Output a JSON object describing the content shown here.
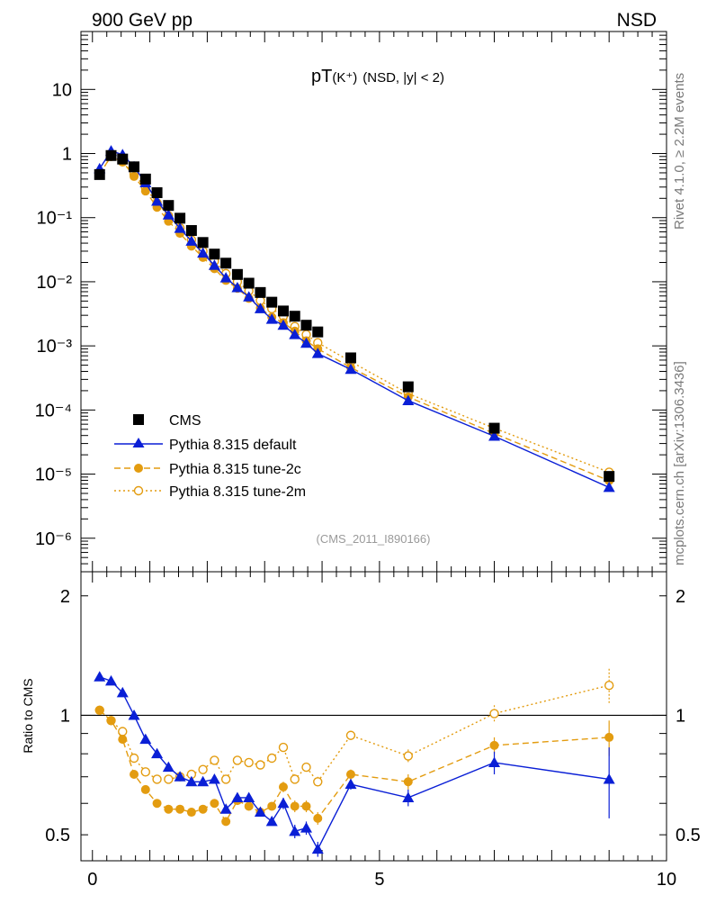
{
  "header": {
    "left": "900 GeV pp",
    "right": "NSD"
  },
  "side_labels": {
    "rivet": "Rivet 4.1.0, ≥ 2.2M events",
    "mcplots": "mcplots.cern.ch [arXiv:1306.3436]"
  },
  "chart_data": [
    {
      "type": "scatter",
      "panel": "main",
      "title_main": "pT",
      "title_particle": "(K⁺)",
      "title_cuts": "(NSD, |y| < 2)",
      "watermark": "(CMS_2011_I890166)",
      "yscale": "log",
      "ylim": [
        3e-07,
        80
      ],
      "xlim": [
        -0.2,
        10
      ],
      "ytick_labels": [
        "10",
        "1",
        "10⁻¹",
        "10⁻²",
        "10⁻³",
        "10⁻⁴",
        "10⁻⁵",
        "10⁻⁶"
      ],
      "ytick_values": [
        10,
        1,
        0.1,
        0.01,
        0.001,
        0.0001,
        1e-05,
        1e-06
      ],
      "legend": [
        "CMS",
        "Pythia 8.315 default",
        "Pythia 8.315 tune-2c",
        "Pythia 8.315 tune-2m"
      ],
      "x": [
        0.125,
        0.325,
        0.525,
        0.725,
        0.925,
        1.125,
        1.325,
        1.525,
        1.725,
        1.925,
        2.125,
        2.325,
        2.525,
        2.725,
        2.925,
        3.125,
        3.325,
        3.525,
        3.725,
        3.925,
        4.5,
        5.5,
        7.0,
        9.0
      ],
      "series": [
        {
          "name": "CMS",
          "marker": "square",
          "color": "#000000",
          "values": [
            0.47,
            0.93,
            0.82,
            0.62,
            0.4,
            0.245,
            0.155,
            0.098,
            0.063,
            0.041,
            0.027,
            0.0195,
            0.013,
            0.0095,
            0.0068,
            0.0048,
            0.0035,
            0.0029,
            0.0021,
            0.00165,
            0.00065,
            0.00023,
            5.2e-05,
            9.2e-06
          ]
        },
        {
          "name": "Pythia 8.315 default",
          "marker": "triangle",
          "color": "#0a1fd6",
          "values": [
            0.58,
            1.1,
            0.96,
            0.62,
            0.35,
            0.18,
            0.11,
            0.068,
            0.043,
            0.028,
            0.018,
            0.0115,
            0.0081,
            0.0058,
            0.0038,
            0.0026,
            0.0021,
            0.0015,
            0.0011,
            0.00076,
            0.00043,
            0.00014,
            3.9e-05,
            6.2e-06
          ]
        },
        {
          "name": "Pythia 8.315 tune-2c",
          "marker": "circle",
          "color": "#e39c10",
          "values": [
            0.48,
            0.91,
            0.75,
            0.44,
            0.26,
            0.145,
            0.088,
            0.057,
            0.036,
            0.024,
            0.016,
            0.0105,
            0.0079,
            0.0055,
            0.0039,
            0.0028,
            0.0023,
            0.0017,
            0.0012,
            0.0009,
            0.00046,
            0.00016,
            4.3e-05,
            7.9e-06
          ]
        },
        {
          "name": "Pythia 8.315 tune-2m",
          "marker": "open-circle",
          "color": "#e39c10",
          "values": [
            0.48,
            0.9,
            0.74,
            0.48,
            0.29,
            0.17,
            0.107,
            0.069,
            0.045,
            0.03,
            0.021,
            0.0134,
            0.01,
            0.0072,
            0.0051,
            0.0038,
            0.0029,
            0.002,
            0.0015,
            0.00112,
            0.00057,
            0.00018,
            5.2e-05,
            1.07e-05
          ]
        }
      ]
    },
    {
      "type": "scatter",
      "panel": "ratio",
      "ylabel": "Ratio to CMS",
      "yscale": "log",
      "ylim": [
        0.43,
        2.3
      ],
      "xlim": [
        -0.2,
        10
      ],
      "ytick_labels": [
        "2",
        "1",
        "0.5"
      ],
      "ytick_values": [
        2,
        1,
        0.5
      ],
      "xtick_labels": [
        "0",
        "5",
        "10"
      ],
      "xtick_values": [
        0,
        5,
        10
      ],
      "reference_line": 1,
      "x": [
        0.125,
        0.325,
        0.525,
        0.725,
        0.925,
        1.125,
        1.325,
        1.525,
        1.725,
        1.925,
        2.125,
        2.325,
        2.525,
        2.725,
        2.925,
        3.125,
        3.325,
        3.525,
        3.725,
        3.925,
        4.5,
        5.5,
        7.0,
        9.0
      ],
      "series": [
        {
          "name": "Pythia 8.315 default",
          "marker": "triangle",
          "color": "#0a1fd6",
          "values": [
            1.25,
            1.22,
            1.14,
            1.0,
            0.87,
            0.8,
            0.74,
            0.7,
            0.68,
            0.68,
            0.69,
            0.58,
            0.62,
            0.62,
            0.57,
            0.54,
            0.6,
            0.51,
            0.52,
            0.46,
            0.67,
            0.62,
            0.76,
            0.69
          ],
          "errors": [
            0,
            0,
            0,
            0,
            0,
            0,
            0,
            0,
            0,
            0,
            0,
            0,
            0,
            0,
            0,
            0,
            0.02,
            0.02,
            0.02,
            0.02,
            0.02,
            0.03,
            0.05,
            0.14
          ]
        },
        {
          "name": "Pythia 8.315 tune-2c",
          "marker": "circle",
          "color": "#e39c10",
          "values": [
            1.03,
            0.97,
            0.87,
            0.71,
            0.65,
            0.6,
            0.58,
            0.58,
            0.57,
            0.58,
            0.6,
            0.54,
            0.61,
            0.59,
            0.57,
            0.59,
            0.66,
            0.59,
            0.59,
            0.55,
            0.71,
            0.68,
            0.84,
            0.88
          ],
          "errors": [
            0,
            0,
            0,
            0,
            0,
            0,
            0,
            0,
            0,
            0,
            0,
            0,
            0,
            0,
            0,
            0,
            0.02,
            0.02,
            0.02,
            0.02,
            0.02,
            0.03,
            0.04,
            0.09
          ]
        },
        {
          "name": "Pythia 8.315 tune-2m",
          "marker": "open-circle",
          "color": "#e39c10",
          "values": [
            1.03,
            0.97,
            0.91,
            0.78,
            0.72,
            0.69,
            0.69,
            0.7,
            0.71,
            0.73,
            0.77,
            0.69,
            0.77,
            0.76,
            0.75,
            0.78,
            0.83,
            0.69,
            0.74,
            0.68,
            0.89,
            0.79,
            1.01,
            1.19
          ],
          "errors": [
            0,
            0,
            0,
            0,
            0,
            0,
            0,
            0,
            0,
            0,
            0,
            0,
            0,
            0,
            0,
            0,
            0.02,
            0.02,
            0.02,
            0.02,
            0.02,
            0.03,
            0.05,
            0.12
          ]
        }
      ]
    }
  ]
}
